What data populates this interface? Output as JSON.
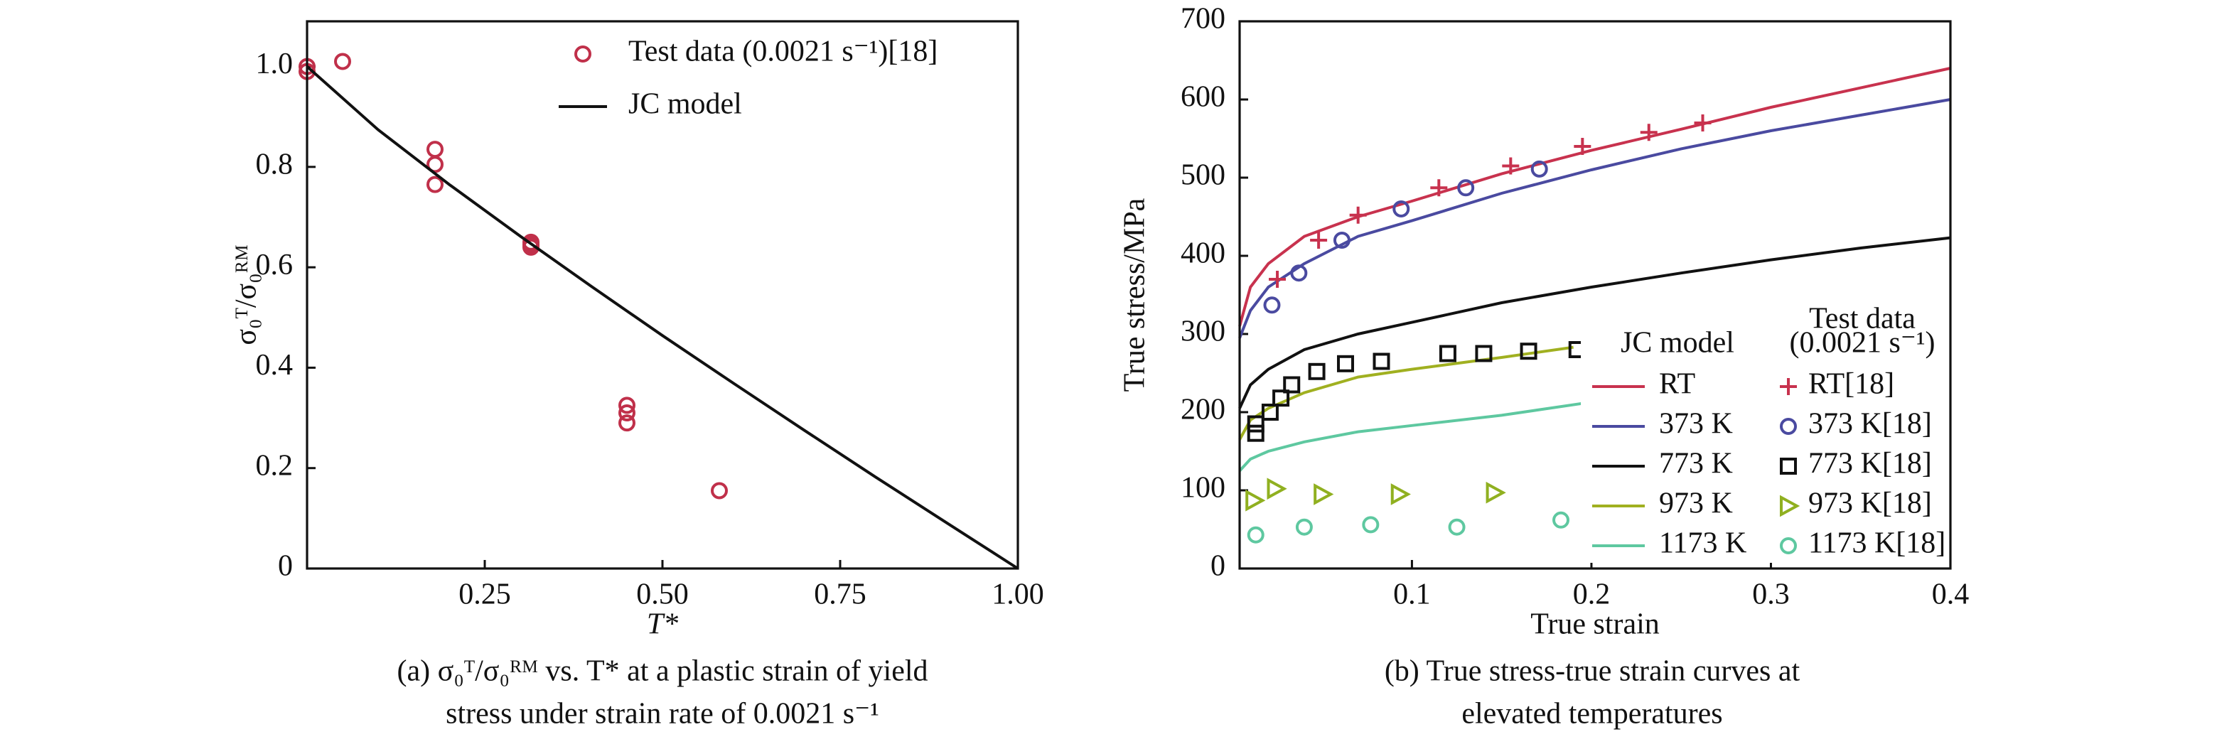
{
  "chart_data": [
    {
      "type": "scatter",
      "xlabel": "T*",
      "ylabel": "σ₀ᵀ/σ₀ᴿᴹ",
      "caption": [
        "(a) σ₀ᵀ/σ₀ᴿᴹ vs. T* at a plastic strain of yield",
        "stress under strain rate of 0.0021 s⁻¹"
      ],
      "xlim": [
        0,
        1
      ],
      "ylim": [
        0,
        1.09
      ],
      "xticks": [
        0.25,
        {
          "value": 0.5,
          "label": "0.50"
        },
        0.75,
        {
          "value": 1,
          "label": "1.00"
        }
      ],
      "yticks": [
        0,
        0.2,
        0.4,
        0.6,
        0.8,
        {
          "value": 1,
          "label": "1.0"
        }
      ],
      "series": [
        {
          "name": "Test data (0.0021 s⁻¹)[18]",
          "type": "scatter",
          "marker": "circle",
          "color": "#c0304a",
          "x": [
            0,
            0,
            0.05,
            0.18,
            0.18,
            0.18,
            0.315,
            0.315,
            0.315,
            0.45,
            0.45,
            0.45,
            0.58
          ],
          "values": [
            1.0,
            0.99,
            1.01,
            0.835,
            0.805,
            0.765,
            0.65,
            0.645,
            0.64,
            0.325,
            0.31,
            0.29,
            0.155
          ]
        },
        {
          "name": "JC model",
          "type": "line",
          "color": "#111111",
          "x": [
            0,
            0.1,
            0.2,
            0.3,
            0.4,
            0.5,
            0.6,
            0.7,
            0.8,
            0.9,
            1
          ],
          "values": [
            1,
            0.874,
            0.765,
            0.662,
            0.562,
            0.464,
            0.369,
            0.275,
            0.182,
            0.091,
            0
          ]
        }
      ]
    },
    {
      "type": "scatter",
      "xlabel": "True strain",
      "ylabel": "True stress/MPa",
      "caption": [
        "(b) True stress-true strain curves at",
        "elevated temperatures"
      ],
      "xlim": [
        0.004,
        0.4
      ],
      "ylim": [
        0,
        700
      ],
      "xticks": [
        0.1,
        0.2,
        0.3,
        0.4
      ],
      "yticks": [
        0,
        100,
        200,
        300,
        400,
        500,
        600,
        700
      ],
      "legend_headers": [
        [
          "JC model"
        ],
        [
          "Test data",
          "(0.0021 s⁻¹)"
        ]
      ],
      "series": [
        {
          "name": "RT",
          "type": "line",
          "color": "#c8324e",
          "x": [
            0.004,
            0.01,
            0.02,
            0.04,
            0.07,
            0.1,
            0.15,
            0.2,
            0.25,
            0.3,
            0.35,
            0.4
          ],
          "values": [
            310,
            360,
            390,
            425,
            450,
            470,
            505,
            535,
            562,
            590,
            615,
            640
          ]
        },
        {
          "name": "373 K",
          "type": "line",
          "color": "#4a4aa0",
          "x": [
            0.004,
            0.01,
            0.02,
            0.04,
            0.07,
            0.1,
            0.15,
            0.2,
            0.25,
            0.3,
            0.35,
            0.4
          ],
          "values": [
            295,
            330,
            360,
            390,
            425,
            445,
            480,
            510,
            537,
            560,
            580,
            600
          ]
        },
        {
          "name": "773 K",
          "type": "line",
          "color": "#111111",
          "x": [
            0.004,
            0.01,
            0.02,
            0.04,
            0.07,
            0.1,
            0.15,
            0.2,
            0.25,
            0.3,
            0.35,
            0.4
          ],
          "values": [
            205,
            235,
            255,
            280,
            300,
            315,
            340,
            360,
            378,
            395,
            410,
            423
          ]
        },
        {
          "name": "973 K",
          "type": "line",
          "color": "#a0b020",
          "x": [
            0.004,
            0.01,
            0.02,
            0.04,
            0.07,
            0.1,
            0.15,
            0.19
          ],
          "values": [
            165,
            190,
            205,
            225,
            245,
            255,
            270,
            283
          ]
        },
        {
          "name": "1173 K",
          "type": "line",
          "color": "#5ec8a0",
          "x": [
            0.004,
            0.01,
            0.02,
            0.04,
            0.07,
            0.1,
            0.15,
            0.2
          ],
          "values": [
            125,
            140,
            150,
            162,
            175,
            183,
            196,
            213
          ]
        },
        {
          "name": "RT[18]",
          "type": "scatter",
          "marker": "plus",
          "color": "#c8324e",
          "x": [
            0.025,
            0.048,
            0.07,
            0.115,
            0.155,
            0.195,
            0.232,
            0.262
          ],
          "values": [
            370,
            420,
            452,
            487,
            515,
            540,
            558,
            570
          ]
        },
        {
          "name": "373 K[18]",
          "type": "scatter",
          "marker": "circle",
          "color": "#4a4aa0",
          "x": [
            0.022,
            0.037,
            0.061,
            0.094,
            0.13,
            0.171
          ],
          "values": [
            337,
            378,
            420,
            460,
            487,
            511
          ]
        },
        {
          "name": "773 K[18]",
          "type": "scatter",
          "marker": "square",
          "color": "#111111",
          "x": [
            0.013,
            0.013,
            0.021,
            0.027,
            0.033,
            0.047,
            0.063,
            0.083,
            0.12,
            0.14,
            0.165,
            0.192
          ],
          "values": [
            173,
            185,
            200,
            218,
            235,
            252,
            262,
            265,
            275,
            275,
            278,
            280
          ]
        },
        {
          "name": "973 K[18]",
          "type": "scatter",
          "marker": "triangle",
          "color": "#90b020",
          "x": [
            0.012,
            0.024,
            0.05,
            0.093,
            0.146
          ],
          "values": [
            87,
            102,
            95,
            95,
            97
          ]
        },
        {
          "name": "1173 K[18]",
          "type": "scatter",
          "marker": "circle",
          "color": "#5ec8a0",
          "x": [
            0.013,
            0.04,
            0.077,
            0.125,
            0.183
          ],
          "values": [
            43,
            53,
            56,
            53,
            62
          ]
        }
      ]
    }
  ]
}
